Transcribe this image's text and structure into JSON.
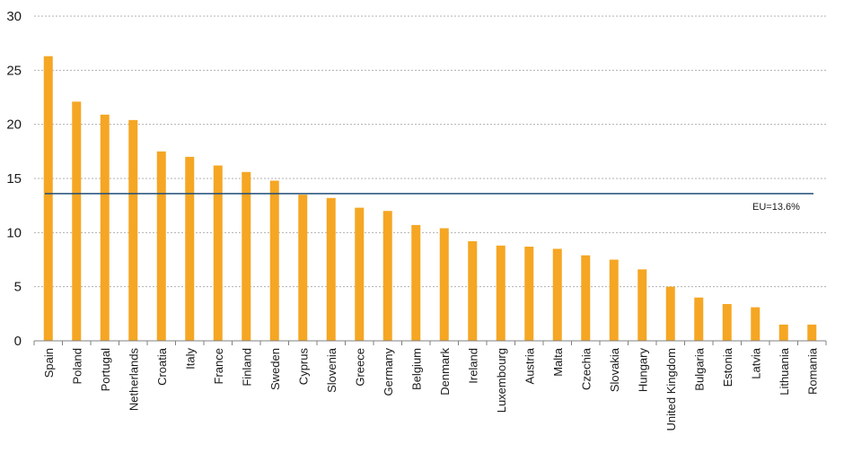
{
  "chart_data": {
    "type": "bar",
    "title": "",
    "xlabel": "",
    "ylabel": "",
    "ylim": [
      0,
      30
    ],
    "yticks": [
      0,
      5,
      10,
      15,
      20,
      25,
      30
    ],
    "grid": true,
    "bar_color": "#f5a623",
    "categories": [
      "Spain",
      "Poland",
      "Portugal",
      "Netherlands",
      "Croatia",
      "Italy",
      "France",
      "Finland",
      "Sweden",
      "Cyprus",
      "Slovenia",
      "Greece",
      "Germany",
      "Belgium",
      "Denmark",
      "Ireland",
      "Luxembourg",
      "Austria",
      "Malta",
      "Czechia",
      "Slovakia",
      "Hungary",
      "United Kingdom",
      "Bulgaria",
      "Estonia",
      "Latvia",
      "Lithuania",
      "Romania"
    ],
    "values": [
      26.3,
      22.1,
      20.9,
      20.4,
      17.5,
      17.0,
      16.2,
      15.6,
      14.8,
      13.5,
      13.2,
      12.3,
      12.0,
      10.7,
      10.4,
      9.2,
      8.8,
      8.7,
      8.5,
      7.9,
      7.5,
      6.6,
      5.0,
      4.0,
      3.4,
      3.1,
      1.5,
      1.5
    ],
    "reference_line": {
      "value": 13.6,
      "label": "EU=13.6%",
      "color": "#1f4e79"
    }
  }
}
